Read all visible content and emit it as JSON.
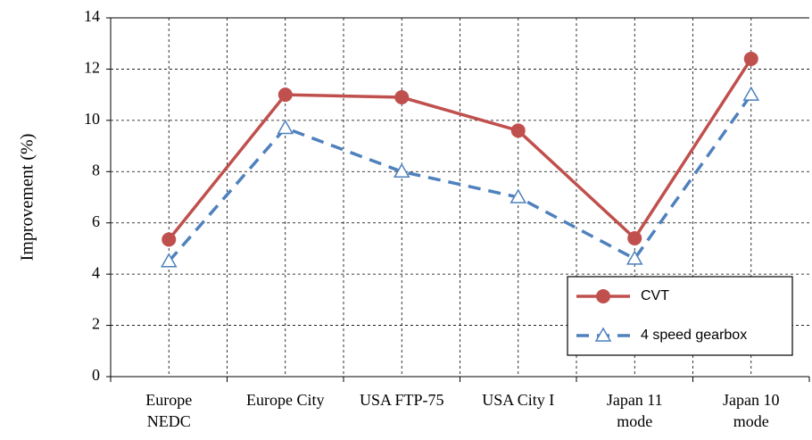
{
  "chart_data": {
    "type": "line",
    "y_label": "Improvement (%)",
    "categories": [
      "Europe\nNEDC",
      "Europe City",
      "USA FTP-75",
      "USA City I",
      "Japan 11\nmode",
      "Japan 10\nmode"
    ],
    "series": [
      {
        "name": "CVT",
        "color": "#c0504d",
        "marker": "circle",
        "dash": false,
        "values": [
          5.35,
          11.0,
          10.9,
          9.6,
          5.4,
          12.4
        ]
      },
      {
        "name": "4 speed gearbox",
        "color": "#4f81bd",
        "marker": "triangle",
        "dash": true,
        "values": [
          4.5,
          9.7,
          8.0,
          7.0,
          4.6,
          11.0
        ]
      }
    ],
    "ylim": [
      0,
      14
    ],
    "yticks": [
      0,
      2,
      4,
      6,
      8,
      10,
      12,
      14
    ],
    "grid": true,
    "legend": "lower right"
  }
}
